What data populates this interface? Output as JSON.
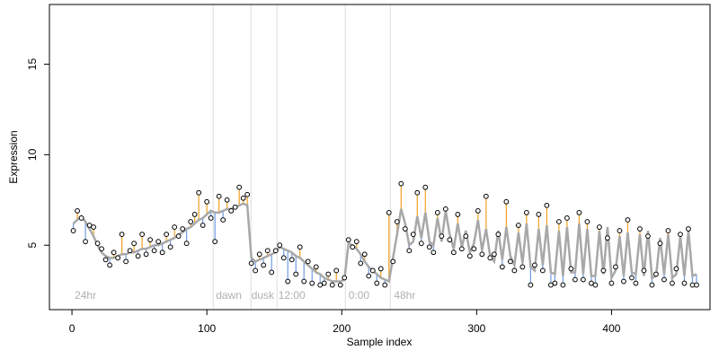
{
  "chart_data": {
    "type": "scatter",
    "xlabel": "Sample index",
    "ylabel": "Expression",
    "xlim": [
      -16.7,
      473
    ],
    "ylim": [
      1.44,
      18.3
    ],
    "xticks": [
      0,
      100,
      200,
      300,
      400
    ],
    "yticks": [
      5,
      10,
      15
    ],
    "point_color": "#000000",
    "line_color": "#a8a8a8",
    "up_color": "#f0a020",
    "down_color": "#6f9be0",
    "vline_color": "#dddddd",
    "vlines": [
      104.7,
      132.7,
      152,
      202.7,
      236
    ],
    "annotations": [
      {
        "x": 2,
        "y": 2.2,
        "text": "24hr"
      },
      {
        "x": 106.7,
        "y": 2.2,
        "text": "dawn"
      },
      {
        "x": 133,
        "y": 2.2,
        "text": "dusk"
      },
      {
        "x": 153,
        "y": 2.2,
        "text": "12:00"
      },
      {
        "x": 205,
        "y": 2.2,
        "text": "0:00"
      },
      {
        "x": 238.7,
        "y": 2.2,
        "text": "48hr"
      }
    ],
    "x": [
      1,
      4,
      7,
      10,
      13,
      16,
      19,
      22,
      25,
      28,
      31,
      34,
      37,
      40,
      43,
      46,
      49,
      52,
      55,
      58,
      61,
      64,
      67,
      70,
      73,
      76,
      79,
      82,
      85,
      88,
      91,
      94,
      97,
      100,
      103,
      106,
      109,
      112,
      115,
      118,
      121,
      124,
      127,
      130,
      133,
      136,
      139,
      142,
      145,
      148,
      151,
      154,
      157,
      160,
      163,
      166,
      169,
      172,
      175,
      178,
      181,
      184,
      187,
      190,
      193,
      196,
      199,
      202,
      205,
      208,
      211,
      214,
      217,
      220,
      223,
      226,
      229,
      232,
      235,
      238,
      241,
      244,
      247,
      250,
      253,
      256,
      259,
      262,
      265,
      268,
      271,
      274,
      277,
      280,
      283,
      286,
      289,
      292,
      295,
      298,
      301,
      304,
      307,
      310,
      313,
      316,
      319,
      322,
      325,
      328,
      331,
      334,
      337,
      340,
      343,
      346,
      349,
      352,
      355,
      358,
      361,
      364,
      367,
      370,
      373,
      376,
      379,
      382,
      385,
      388,
      391,
      394,
      397,
      400,
      403,
      406,
      409,
      412,
      415,
      418,
      421,
      424,
      427,
      430,
      433,
      436,
      439,
      442,
      445,
      448,
      451,
      454,
      457,
      460,
      463
    ],
    "values": [
      5.8,
      6.9,
      6.5,
      5.2,
      6.1,
      6.0,
      5.1,
      4.8,
      4.2,
      3.9,
      4.6,
      4.3,
      5.6,
      4.1,
      4.7,
      5.1,
      4.4,
      5.6,
      4.5,
      5.3,
      4.7,
      5.2,
      4.6,
      5.6,
      4.9,
      6.0,
      5.5,
      5.9,
      5.1,
      6.3,
      6.7,
      7.9,
      6.1,
      7.4,
      6.5,
      5.2,
      7.7,
      6.4,
      7.5,
      6.9,
      7.1,
      8.2,
      7.6,
      7.8,
      4.0,
      3.6,
      4.5,
      3.9,
      4.7,
      3.5,
      4.7,
      5.0,
      4.3,
      3.0,
      4.2,
      3.4,
      4.9,
      3.0,
      4.1,
      2.9,
      3.8,
      2.8,
      2.9,
      3.4,
      2.8,
      3.6,
      2.8,
      3.2,
      5.3,
      4.9,
      5.2,
      4.0,
      4.5,
      3.3,
      3.6,
      2.9,
      3.7,
      2.8,
      6.8,
      4.1,
      6.3,
      8.4,
      5.9,
      4.7,
      5.6,
      7.9,
      5.1,
      8.2,
      4.9,
      4.6,
      6.8,
      5.5,
      7.0,
      5.3,
      4.6,
      6.7,
      4.8,
      5.5,
      4.4,
      4.8,
      6.9,
      4.5,
      7.7,
      4.3,
      4.5,
      5.6,
      3.8,
      7.4,
      4.1,
      3.6,
      6.1,
      3.8,
      6.8,
      2.8,
      3.9,
      6.7,
      3.6,
      7.2,
      2.8,
      2.9,
      6.3,
      2.8,
      6.5,
      3.7,
      3.1,
      6.8,
      3.1,
      6.3,
      2.9,
      2.8,
      6.0,
      3.6,
      5.4,
      2.9,
      3.8,
      5.8,
      3.0,
      6.4,
      3.2,
      2.9,
      5.9,
      3.6,
      5.5,
      2.8,
      3.4,
      5.1,
      3.1,
      5.8,
      2.9,
      3.7,
      5.6,
      2.9,
      5.9,
      2.8,
      2.8
    ],
    "fitted": [
      6.2,
      6.4,
      6.6,
      6.3,
      5.9,
      5.5,
      5.0,
      4.6,
      4.4,
      4.3,
      4.3,
      4.4,
      4.5,
      4.5,
      4.6,
      4.6,
      4.7,
      4.8,
      4.8,
      4.9,
      5.0,
      5.0,
      5.1,
      5.2,
      5.3,
      5.4,
      5.6,
      5.7,
      5.9,
      6.0,
      6.2,
      6.4,
      6.5,
      6.7,
      6.9,
      6.8,
      6.8,
      6.9,
      7.0,
      7.0,
      7.1,
      7.2,
      7.3,
      7.2,
      4.3,
      4.1,
      4.2,
      4.3,
      4.4,
      4.5,
      4.6,
      4.9,
      4.8,
      4.7,
      4.6,
      4.4,
      4.3,
      4.1,
      3.9,
      3.7,
      3.5,
      3.4,
      3.2,
      3.1,
      3.0,
      3.0,
      3.0,
      3.1,
      5.1,
      5.0,
      4.8,
      4.5,
      4.1,
      3.8,
      3.6,
      3.4,
      3.2,
      3.1,
      3.0,
      4.3,
      5.6,
      7.0,
      6.2,
      5.0,
      5.2,
      6.6,
      5.4,
      6.8,
      5.2,
      5.0,
      6.5,
      5.2,
      6.9,
      5.6,
      4.8,
      6.2,
      4.9,
      5.8,
      4.6,
      5.1,
      6.4,
      4.7,
      5.9,
      4.4,
      4.1,
      5.8,
      4.2,
      6.0,
      4.4,
      3.9,
      5.7,
      4.0,
      6.2,
      3.8,
      3.6,
      5.9,
      3.9,
      6.1,
      3.5,
      3.4,
      5.8,
      3.3,
      6.0,
      3.5,
      3.5,
      6.2,
      3.4,
      5.9,
      3.3,
      3.3,
      5.8,
      3.4,
      6.0,
      3.2,
      3.6,
      5.5,
      3.3,
      5.7,
      3.5,
      3.4,
      5.6,
      3.3,
      5.8,
      3.2,
      3.3,
      5.4,
      3.4,
      5.6,
      3.2,
      3.4,
      5.5,
      3.3,
      5.8,
      3.3,
      3.4
    ]
  }
}
